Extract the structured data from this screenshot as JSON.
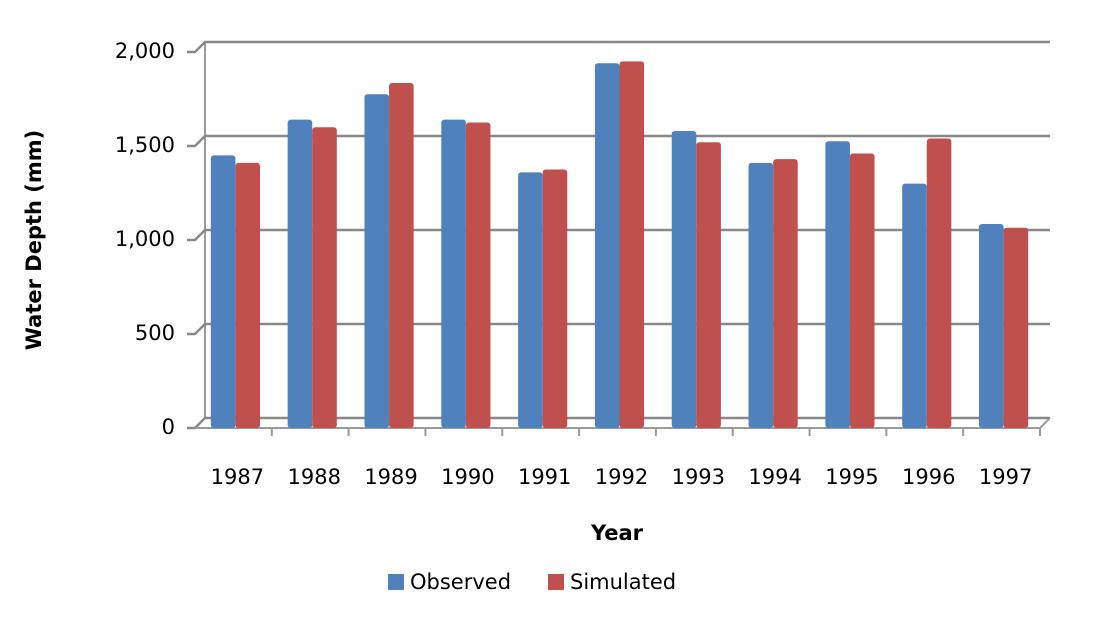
{
  "chart_data": {
    "type": "bar",
    "x_label": "Year",
    "y_label": "Water Depth (mm)",
    "categories": [
      "1987",
      "1988",
      "1989",
      "1990",
      "1991",
      "1992",
      "1993",
      "1994",
      "1995",
      "1996",
      "1997"
    ],
    "series": [
      {
        "name": "Observed",
        "color": "#4f81bd",
        "values": [
          1450,
          1640,
          1775,
          1640,
          1360,
          1940,
          1580,
          1410,
          1525,
          1300,
          1085
        ]
      },
      {
        "name": "Simulated",
        "color": "#c0504d",
        "values": [
          1410,
          1600,
          1835,
          1625,
          1375,
          1950,
          1520,
          1430,
          1460,
          1540,
          1065
        ]
      }
    ],
    "ylim": [
      0,
      2000
    ],
    "yticks": [
      0,
      500,
      {
        "value": 1000,
        "label": "1,000"
      },
      {
        "value": 1500,
        "label": "1,500"
      },
      {
        "value": 2000,
        "label": "2,000"
      }
    ],
    "grid": true,
    "legend": "bottom"
  }
}
